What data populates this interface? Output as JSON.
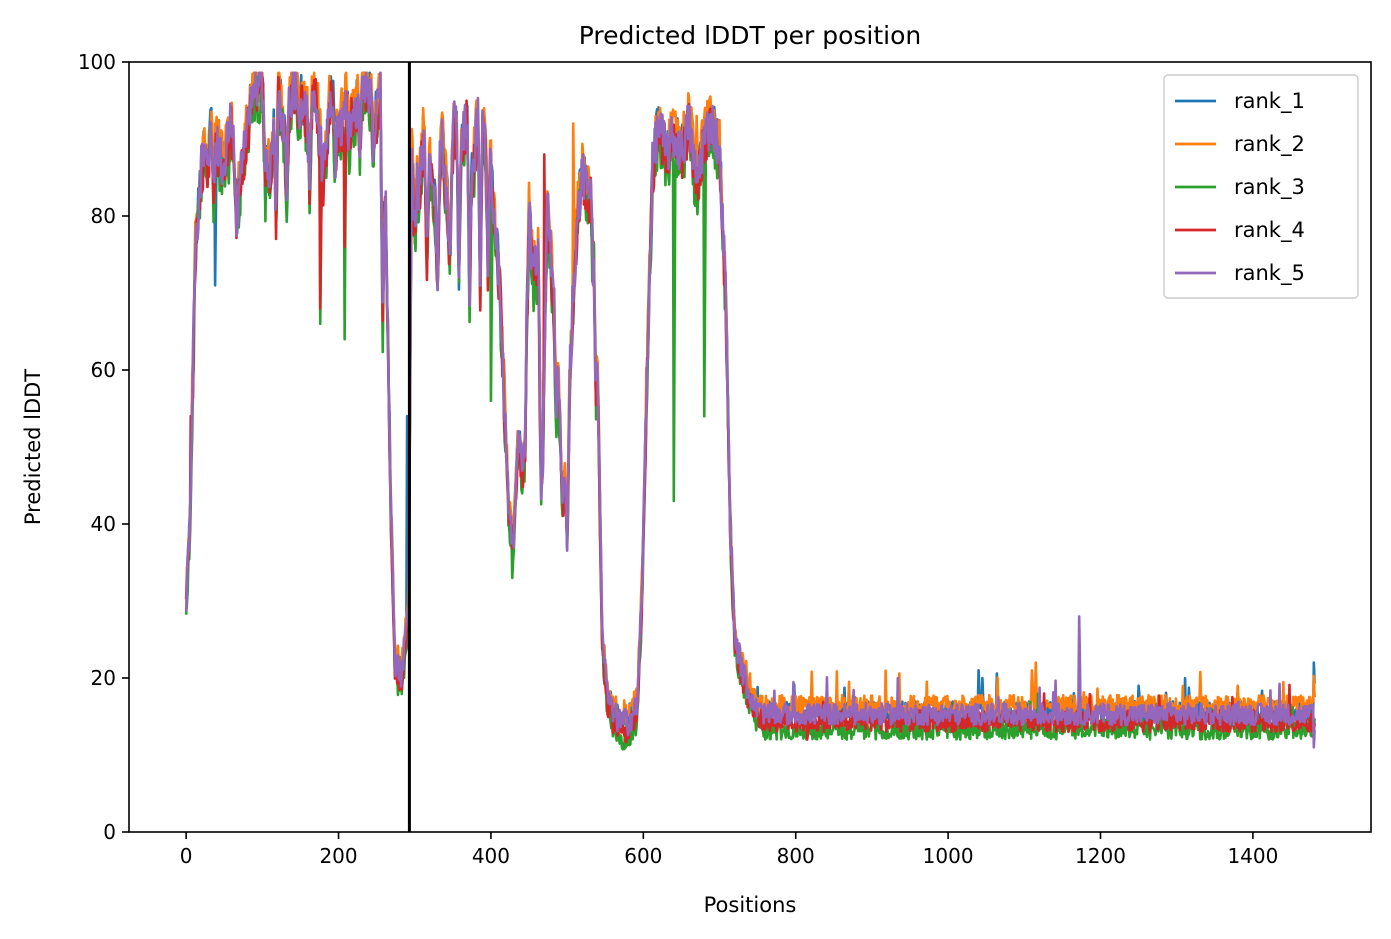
{
  "chart_data": {
    "type": "line",
    "title": "Predicted lDDT per position",
    "xlabel": "Positions",
    "ylabel": "Predicted lDDT",
    "xlim": [
      -75,
      1555
    ],
    "ylim": [
      0,
      100
    ],
    "xticks": [
      0,
      200,
      400,
      600,
      800,
      1000,
      1200,
      1400
    ],
    "yticks": [
      0,
      20,
      40,
      60,
      80,
      100
    ],
    "grid": false,
    "legend_position": "top-right",
    "vertical_marker": {
      "x": 293,
      "color": "#000000"
    },
    "series": [
      {
        "name": "rank_1",
        "color": "#1f77b4",
        "offset": 0.6,
        "extra_spikes": [
          [
            38,
            71
          ],
          [
            160,
            88
          ],
          [
            290,
            54
          ],
          [
            1040,
            21
          ],
          [
            1045,
            20
          ],
          [
            1250,
            19
          ],
          [
            1480,
            22
          ]
        ]
      },
      {
        "name": "rank_2",
        "color": "#ff7f0e",
        "offset": 1.4,
        "extra_spikes": [
          [
            508,
            92
          ],
          [
            640,
            93
          ],
          [
            670,
            93
          ],
          [
            690,
            93
          ],
          [
            1115,
            22
          ],
          [
            1110,
            21
          ],
          [
            1380,
            19
          ]
        ]
      },
      {
        "name": "rank_3",
        "color": "#2ca02c",
        "offset": -1.6,
        "extra_spikes": [
          [
            176,
            66
          ],
          [
            208,
            64
          ],
          [
            400,
            56
          ],
          [
            428,
            33
          ],
          [
            640,
            43
          ],
          [
            680,
            54
          ]
        ]
      },
      {
        "name": "rank_4",
        "color": "#d62728",
        "offset": -0.6,
        "extra_spikes": [
          [
            6,
            54
          ],
          [
            176,
            68
          ],
          [
            208,
            76
          ],
          [
            470,
            88
          ],
          [
            815,
            12
          ]
        ]
      },
      {
        "name": "rank_5",
        "color": "#9467bd",
        "offset": 0.3,
        "extra_spikes": [
          [
            1172,
            28
          ],
          [
            1480,
            11
          ]
        ]
      }
    ],
    "profile": [
      [
        0,
        30
      ],
      [
        5,
        40
      ],
      [
        12,
        75
      ],
      [
        20,
        86
      ],
      [
        28,
        91
      ],
      [
        38,
        90
      ],
      [
        48,
        86
      ],
      [
        58,
        93
      ],
      [
        68,
        82
      ],
      [
        78,
        90
      ],
      [
        90,
        97
      ],
      [
        100,
        96
      ],
      [
        110,
        84
      ],
      [
        120,
        97
      ],
      [
        130,
        90
      ],
      [
        140,
        97
      ],
      [
        150,
        95
      ],
      [
        160,
        92
      ],
      [
        170,
        96
      ],
      [
        180,
        85
      ],
      [
        190,
        96
      ],
      [
        200,
        90
      ],
      [
        210,
        95
      ],
      [
        220,
        92
      ],
      [
        230,
        97
      ],
      [
        240,
        96
      ],
      [
        250,
        92
      ],
      [
        255,
        97
      ],
      [
        262,
        80
      ],
      [
        268,
        45
      ],
      [
        274,
        22
      ],
      [
        282,
        20
      ],
      [
        288,
        25
      ],
      [
        292,
        30
      ],
      [
        296,
        88
      ],
      [
        305,
        82
      ],
      [
        312,
        91
      ],
      [
        320,
        86
      ],
      [
        328,
        80
      ],
      [
        336,
        90
      ],
      [
        344,
        80
      ],
      [
        352,
        92
      ],
      [
        360,
        88
      ],
      [
        368,
        93
      ],
      [
        376,
        85
      ],
      [
        384,
        94
      ],
      [
        392,
        90
      ],
      [
        400,
        86
      ],
      [
        406,
        78
      ],
      [
        412,
        70
      ],
      [
        418,
        55
      ],
      [
        424,
        40
      ],
      [
        430,
        38
      ],
      [
        436,
        52
      ],
      [
        442,
        45
      ],
      [
        450,
        80
      ],
      [
        456,
        72
      ],
      [
        462,
        74
      ],
      [
        468,
        50
      ],
      [
        474,
        82
      ],
      [
        480,
        72
      ],
      [
        488,
        60
      ],
      [
        494,
        42
      ],
      [
        500,
        50
      ],
      [
        508,
        70
      ],
      [
        514,
        80
      ],
      [
        520,
        86
      ],
      [
        528,
        82
      ],
      [
        534,
        85
      ],
      [
        540,
        60
      ],
      [
        546,
        25
      ],
      [
        552,
        18
      ],
      [
        560,
        15
      ],
      [
        570,
        14
      ],
      [
        580,
        14
      ],
      [
        592,
        16
      ],
      [
        598,
        30
      ],
      [
        605,
        60
      ],
      [
        612,
        86
      ],
      [
        620,
        92
      ],
      [
        630,
        88
      ],
      [
        640,
        90
      ],
      [
        650,
        88
      ],
      [
        660,
        92
      ],
      [
        670,
        84
      ],
      [
        680,
        90
      ],
      [
        690,
        92
      ],
      [
        700,
        88
      ],
      [
        708,
        70
      ],
      [
        714,
        40
      ],
      [
        720,
        25
      ],
      [
        732,
        20
      ],
      [
        745,
        16
      ],
      [
        760,
        15
      ],
      [
        800,
        15
      ],
      [
        850,
        15
      ],
      [
        900,
        15
      ],
      [
        950,
        15
      ],
      [
        1000,
        15
      ],
      [
        1050,
        15
      ],
      [
        1100,
        15
      ],
      [
        1150,
        15
      ],
      [
        1200,
        15
      ],
      [
        1250,
        15
      ],
      [
        1300,
        15
      ],
      [
        1350,
        15
      ],
      [
        1400,
        15
      ],
      [
        1450,
        15
      ],
      [
        1481,
        15
      ]
    ],
    "dips": [
      [
        28,
        84
      ],
      [
        36,
        83
      ],
      [
        56,
        88
      ],
      [
        66,
        79
      ],
      [
        104,
        84
      ],
      [
        118,
        79
      ],
      [
        132,
        84
      ],
      [
        148,
        92
      ],
      [
        162,
        85
      ],
      [
        184,
        88
      ],
      [
        196,
        87
      ],
      [
        214,
        90
      ],
      [
        228,
        90
      ],
      [
        246,
        88
      ],
      [
        258,
        66
      ],
      [
        300,
        78
      ],
      [
        316,
        74
      ],
      [
        330,
        72
      ],
      [
        346,
        74
      ],
      [
        358,
        73
      ],
      [
        372,
        70
      ],
      [
        386,
        70
      ],
      [
        396,
        74
      ],
      [
        444,
        48
      ],
      [
        466,
        44
      ],
      [
        486,
        55
      ],
      [
        500,
        38
      ],
      [
        534,
        72
      ],
      [
        538,
        56
      ]
    ]
  }
}
